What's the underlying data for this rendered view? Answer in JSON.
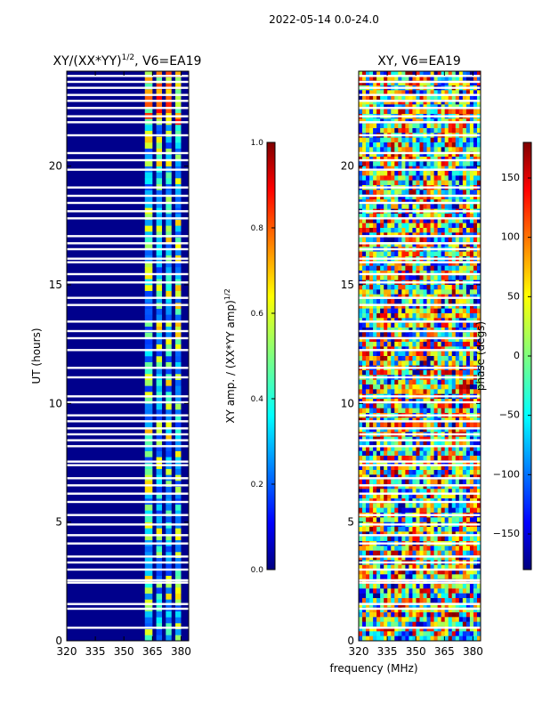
{
  "figure_title": "2022-05-14 0.0-24.0",
  "shared_xlabel": "frequency (MHz)",
  "chart_data": [
    {
      "type": "heatmap",
      "title": "XY/(XX*YY)",
      "title_exponent": "1/2",
      "title_suffix": ", V6=EA19",
      "ylabel": "UT (hours)",
      "xlim": [
        320,
        384
      ],
      "ylim": [
        0,
        24
      ],
      "xticks": [
        320,
        335,
        350,
        365,
        380
      ],
      "yticks": [
        0,
        5,
        10,
        15,
        20
      ],
      "colorbar": {
        "label": "XY amp. / (XX*YY amp)",
        "label_exponent": "1/2",
        "min": 0.0,
        "max": 1.0,
        "ticks": [
          "0.0",
          "0.2",
          "0.4",
          "0.6",
          "0.8",
          "1.0"
        ],
        "tick_values": [
          0,
          0.2,
          0.4,
          0.6,
          0.8,
          1.0
        ],
        "colormap": "jet"
      },
      "bright_bands_mhz": [
        [
          361,
          365
        ],
        [
          367,
          370
        ],
        [
          372,
          375
        ],
        [
          377,
          380
        ]
      ],
      "flagged_hours": [
        0.55,
        1.35,
        1.55,
        2.45,
        2.55,
        3.0,
        3.3,
        3.55,
        4.1,
        4.45,
        4.9,
        5.3,
        5.85,
        6.2,
        6.55,
        6.85,
        7.4,
        7.55,
        8.2,
        8.45,
        8.7,
        8.95,
        9.25,
        9.5,
        10.05,
        10.3,
        11.1,
        11.5,
        12.25,
        12.75,
        13.05,
        13.45,
        14.15,
        14.45,
        15.1,
        15.45,
        15.95,
        16.1,
        16.5,
        16.75,
        17.05,
        17.8,
        18.1,
        18.45,
        18.75,
        19.1,
        19.85,
        20.25,
        20.55,
        21.3,
        21.85,
        22.1,
        22.45,
        22.75,
        23.0,
        23.3,
        23.55,
        23.8
      ]
    },
    {
      "type": "heatmap",
      "title": "XY, V6=EA19",
      "xlim": [
        320,
        384
      ],
      "ylim": [
        0,
        24
      ],
      "xticks": [
        320,
        335,
        350,
        365,
        380
      ],
      "yticks": [
        0,
        5,
        10,
        15,
        20
      ],
      "colorbar": {
        "label": "phase (degs)",
        "min": -180,
        "max": 180,
        "ticks": [
          "150",
          "100",
          "50",
          "0",
          "−50",
          "−100",
          "−150"
        ],
        "tick_values": [
          150,
          100,
          50,
          0,
          -50,
          -100,
          -150
        ],
        "colormap": "jet"
      },
      "flagged_hours": [
        0.55,
        1.35,
        1.55,
        2.45,
        2.55,
        3.0,
        3.3,
        3.55,
        4.1,
        4.45,
        4.9,
        5.3,
        5.85,
        6.2,
        6.55,
        6.85,
        7.4,
        7.55,
        8.2,
        8.45,
        8.7,
        8.95,
        9.25,
        9.5,
        10.05,
        10.3,
        11.1,
        11.5,
        12.25,
        12.75,
        13.05,
        13.45,
        14.15,
        14.45,
        15.1,
        15.45,
        15.95,
        16.1,
        16.5,
        16.75,
        17.05,
        17.8,
        18.1,
        18.45,
        18.75,
        19.1,
        19.85,
        20.25,
        20.55,
        21.3,
        21.85,
        22.1,
        22.45,
        22.75,
        23.0,
        23.3,
        23.55,
        23.8
      ]
    }
  ]
}
